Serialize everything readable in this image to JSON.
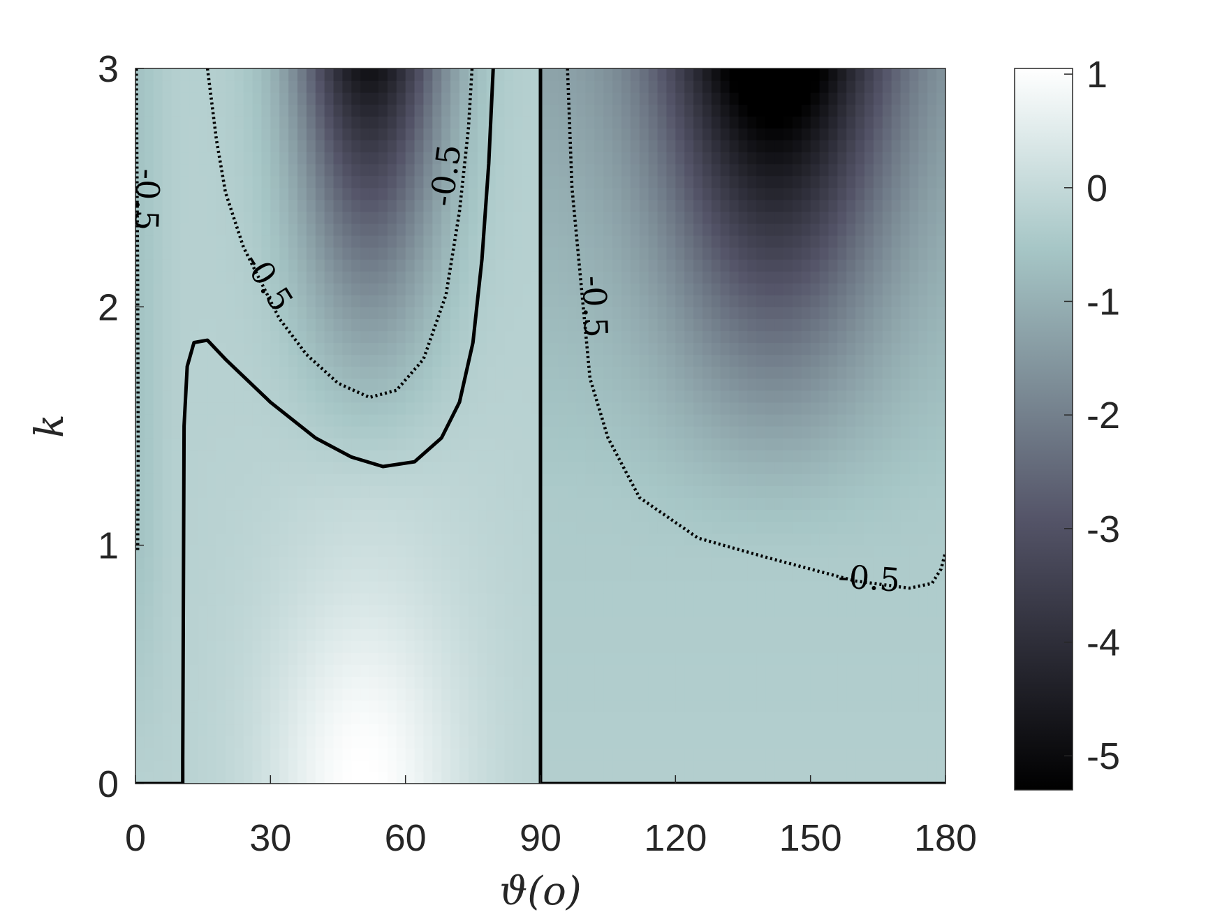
{
  "chart_data": {
    "type": "heatmap",
    "xlabel": "ϑ(o)",
    "ylabel": "k",
    "xlim": [
      0,
      180
    ],
    "ylim": [
      0,
      3
    ],
    "x_ticks": [
      0,
      30,
      60,
      90,
      120,
      150,
      180
    ],
    "y_ticks": [
      0,
      1,
      2,
      3
    ],
    "colorbar": {
      "range": [
        -5.3,
        1.05
      ],
      "ticks": [
        1,
        0,
        -1,
        -2,
        -3,
        -4,
        -5
      ],
      "tick_labels": [
        "1",
        "0",
        "-1",
        "-2",
        "-3",
        "-4",
        "-5"
      ],
      "colormap": "bone",
      "colors": [
        "#000000",
        "#545468",
        "#a6c6c6",
        "#ffffff"
      ]
    },
    "grid": false,
    "contours": [
      {
        "level": 0,
        "style": "solid",
        "paths": [
          [
            [
              0,
              0
            ],
            [
              10.5,
              0
            ],
            [
              10.5,
              0.1
            ],
            [
              10.8,
              1.5
            ],
            [
              11.5,
              1.75
            ],
            [
              13,
              1.85
            ],
            [
              16,
              1.86
            ],
            [
              20,
              1.78
            ],
            [
              30,
              1.6
            ],
            [
              40,
              1.45
            ],
            [
              48,
              1.37
            ],
            [
              55,
              1.33
            ],
            [
              62,
              1.35
            ],
            [
              68,
              1.45
            ],
            [
              72,
              1.6
            ],
            [
              75,
              1.85
            ],
            [
              77,
              2.2
            ],
            [
              78.5,
              2.6
            ],
            [
              79.5,
              3.0
            ]
          ],
          [
            [
              90,
              3.0
            ],
            [
              90,
              0
            ],
            [
              180,
              0
            ]
          ]
        ]
      },
      {
        "level": -0.5,
        "style": "dotted",
        "paths": [
          [
            [
              0.5,
              0.98
            ],
            [
              0.6,
              1.4
            ],
            [
              0.5,
              2.1
            ],
            [
              0.2,
              3.0
            ]
          ],
          [
            [
              16,
              3.0
            ],
            [
              18,
              2.7
            ],
            [
              20,
              2.48
            ],
            [
              24,
              2.25
            ],
            [
              28,
              2.1
            ],
            [
              32,
              1.95
            ],
            [
              38,
              1.8
            ],
            [
              45,
              1.68
            ],
            [
              52,
              1.62
            ],
            [
              58,
              1.65
            ],
            [
              64,
              1.78
            ],
            [
              69,
              2.05
            ],
            [
              72,
              2.4
            ],
            [
              74,
              2.75
            ],
            [
              74.8,
              3.0
            ]
          ],
          [
            [
              96,
              3.0
            ],
            [
              97,
              2.5
            ],
            [
              99,
              2.1
            ],
            [
              101,
              1.7
            ],
            [
              105,
              1.45
            ],
            [
              112,
              1.2
            ],
            [
              125,
              1.03
            ],
            [
              140,
              0.95
            ],
            [
              160,
              0.85
            ],
            [
              172,
              0.82
            ],
            [
              177,
              0.84
            ],
            [
              179,
              0.9
            ],
            [
              180,
              0.97
            ]
          ]
        ]
      }
    ],
    "contour_labels": [
      {
        "text": "-0.5",
        "x": 2,
        "y": 2.45,
        "rotation": 92
      },
      {
        "text": "-0.5",
        "x": 29,
        "y": 2.1,
        "rotation": 58
      },
      {
        "text": "-0.5",
        "x": 69.5,
        "y": 2.55,
        "rotation": -82
      },
      {
        "text": "-0.5",
        "x": 101.5,
        "y": 2.0,
        "rotation": 88
      },
      {
        "text": "-0.5",
        "x": 163,
        "y": 0.85,
        "rotation": 4
      }
    ],
    "field_features": {
      "max_region": {
        "x": 52,
        "y": 0.05,
        "value": 1.0
      },
      "min_region": {
        "x": 142,
        "y": 3.0,
        "value": -5.3
      },
      "left_panel_top_min": {
        "x": 52,
        "y": 3.0,
        "value": -4.6
      }
    }
  }
}
